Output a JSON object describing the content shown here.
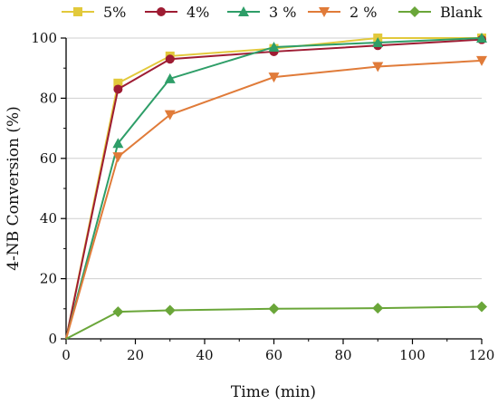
{
  "chart_data": {
    "type": "line",
    "xlabel": "Time (min)",
    "ylabel": "4-NB Conversion (%)",
    "xlim": [
      0,
      120
    ],
    "ylim": [
      0,
      100
    ],
    "xticks": [
      "0",
      "20",
      "40",
      "60",
      "80",
      "100",
      "120"
    ],
    "yticks": [
      "0",
      "20",
      "40",
      "60",
      "80",
      "100"
    ],
    "grid": "horizontal",
    "legend_position": "top",
    "series": [
      {
        "name": "5%",
        "color": "#e2c93b",
        "marker": "square",
        "x": [
          0,
          15,
          30,
          60,
          90,
          120
        ],
        "y": [
          0,
          85,
          94,
          96.5,
          100,
          100
        ]
      },
      {
        "name": "4%",
        "color": "#9e1c33",
        "marker": "circle",
        "x": [
          0,
          15,
          30,
          60,
          90,
          120
        ],
        "y": [
          0,
          83,
          93,
          95.5,
          97.5,
          99.5
        ]
      },
      {
        "name": "3 %",
        "color": "#2e9e68",
        "marker": "triangle-up",
        "x": [
          0,
          15,
          30,
          60,
          90,
          120
        ],
        "y": [
          0,
          65,
          86.5,
          97,
          98.5,
          100
        ]
      },
      {
        "name": "2 %",
        "color": "#e07b39",
        "marker": "triangle-down",
        "x": [
          0,
          15,
          30,
          60,
          90,
          120
        ],
        "y": [
          0,
          60.5,
          74.5,
          87,
          90.5,
          92.5
        ]
      },
      {
        "name": "Blank",
        "color": "#6aa639",
        "marker": "diamond",
        "x": [
          0,
          15,
          30,
          60,
          90,
          120
        ],
        "y": [
          0,
          9,
          9.5,
          10,
          10.2,
          10.7
        ]
      }
    ]
  }
}
